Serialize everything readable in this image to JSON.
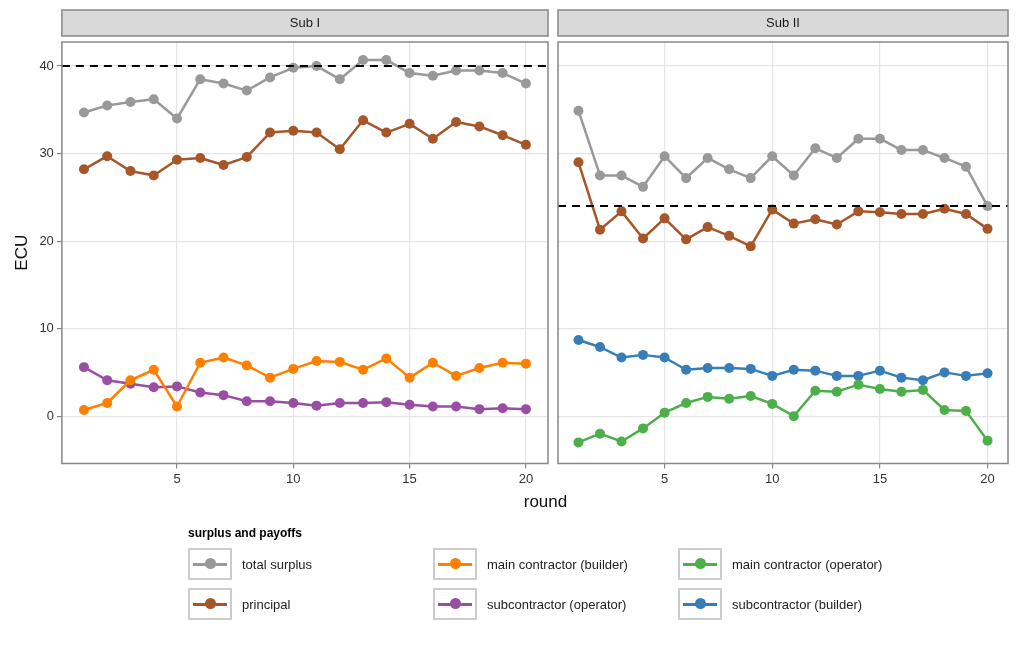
{
  "chart_data": [
    {
      "type": "line",
      "title": "Sub I",
      "xlabel": "round",
      "ylabel": "ECU",
      "legend_title": "surplus and payoffs",
      "legend": "bottom",
      "grid": true,
      "marker": "circle",
      "line_style": "solid",
      "x": [
        1,
        2,
        3,
        4,
        5,
        6,
        7,
        8,
        9,
        10,
        11,
        12,
        13,
        14,
        15,
        16,
        17,
        18,
        19,
        20
      ],
      "xlim": [
        0.05,
        20.95
      ],
      "xticks": [
        5,
        10,
        15,
        20
      ],
      "ylim": [
        -5.4,
        42.75
      ],
      "yticks": [
        0,
        10,
        20,
        30,
        40
      ],
      "ref_lines": [
        {
          "axis": "y",
          "value": 40,
          "color": "#000000",
          "line_style": "dashed"
        }
      ],
      "series": [
        {
          "name": "total surplus",
          "color": "#999999",
          "values": [
            34.7,
            35.5,
            35.9,
            36.2,
            34.0,
            38.5,
            38.0,
            37.2,
            38.7,
            39.8,
            40.0,
            38.5,
            40.7,
            40.7,
            39.2,
            38.9,
            39.5,
            39.5,
            39.2,
            38.0
          ]
        },
        {
          "name": "principal",
          "color": "#a65628",
          "values": [
            28.2,
            29.7,
            28.0,
            27.5,
            29.3,
            29.5,
            28.7,
            29.6,
            32.4,
            32.6,
            32.4,
            30.5,
            33.8,
            32.4,
            33.4,
            31.7,
            33.6,
            33.1,
            32.1,
            31.0
          ]
        },
        {
          "name": "main contractor (builder)",
          "color": "#ff7f00",
          "values": [
            0.7,
            1.5,
            4.1,
            5.3,
            1.1,
            6.1,
            6.7,
            5.8,
            4.4,
            5.4,
            6.3,
            6.2,
            5.3,
            6.6,
            4.4,
            6.1,
            4.6,
            5.5,
            6.1,
            6.0
          ]
        },
        {
          "name": "subcontractor (operator)",
          "color": "#984ea3",
          "values": [
            5.6,
            4.1,
            3.7,
            3.3,
            3.4,
            2.7,
            2.4,
            1.7,
            1.7,
            1.5,
            1.2,
            1.5,
            1.5,
            1.6,
            1.3,
            1.1,
            1.1,
            0.8,
            0.9,
            0.8
          ]
        }
      ]
    },
    {
      "type": "line",
      "title": "Sub II",
      "legend": "bottom",
      "grid": true,
      "marker": "circle",
      "line_style": "solid",
      "tick_labels": "x",
      "x": [
        1,
        2,
        3,
        4,
        5,
        6,
        7,
        8,
        9,
        10,
        11,
        12,
        13,
        14,
        15,
        16,
        17,
        18,
        19,
        20
      ],
      "xlim": [
        0.05,
        20.95
      ],
      "xticks": [
        5,
        10,
        15,
        20
      ],
      "ylim": [
        -5.4,
        42.75
      ],
      "yticks": [
        0,
        10,
        20,
        30,
        40
      ],
      "ref_lines": [
        {
          "axis": "y",
          "value": 24,
          "color": "#000000",
          "line_style": "dashed"
        }
      ],
      "series": [
        {
          "name": "total surplus",
          "color": "#999999",
          "values": [
            34.9,
            27.5,
            27.5,
            26.2,
            29.7,
            27.2,
            29.5,
            28.2,
            27.2,
            29.7,
            27.5,
            30.6,
            29.5,
            31.7,
            31.7,
            30.4,
            30.4,
            29.5,
            28.5,
            24.0
          ]
        },
        {
          "name": "principal",
          "color": "#a65628",
          "values": [
            29.0,
            21.3,
            23.4,
            20.3,
            22.6,
            20.2,
            21.6,
            20.6,
            19.4,
            23.6,
            22.0,
            22.5,
            21.9,
            23.4,
            23.3,
            23.1,
            23.1,
            23.7,
            23.1,
            21.4
          ]
        },
        {
          "name": "main contractor (operator)",
          "color": "#4daf4a",
          "values": [
            -3.0,
            -2.0,
            -2.9,
            -1.4,
            0.4,
            1.5,
            2.2,
            2.0,
            2.3,
            1.4,
            0.0,
            2.9,
            2.8,
            3.6,
            3.1,
            2.8,
            3.0,
            0.7,
            0.6,
            -2.8
          ]
        },
        {
          "name": "subcontractor (builder)",
          "color": "#377eb8",
          "values": [
            8.7,
            7.9,
            6.7,
            7.0,
            6.7,
            5.3,
            5.5,
            5.5,
            5.4,
            4.6,
            5.3,
            5.2,
            4.6,
            4.6,
            5.2,
            4.4,
            4.1,
            5.0,
            4.6,
            4.9
          ]
        }
      ]
    }
  ]
}
